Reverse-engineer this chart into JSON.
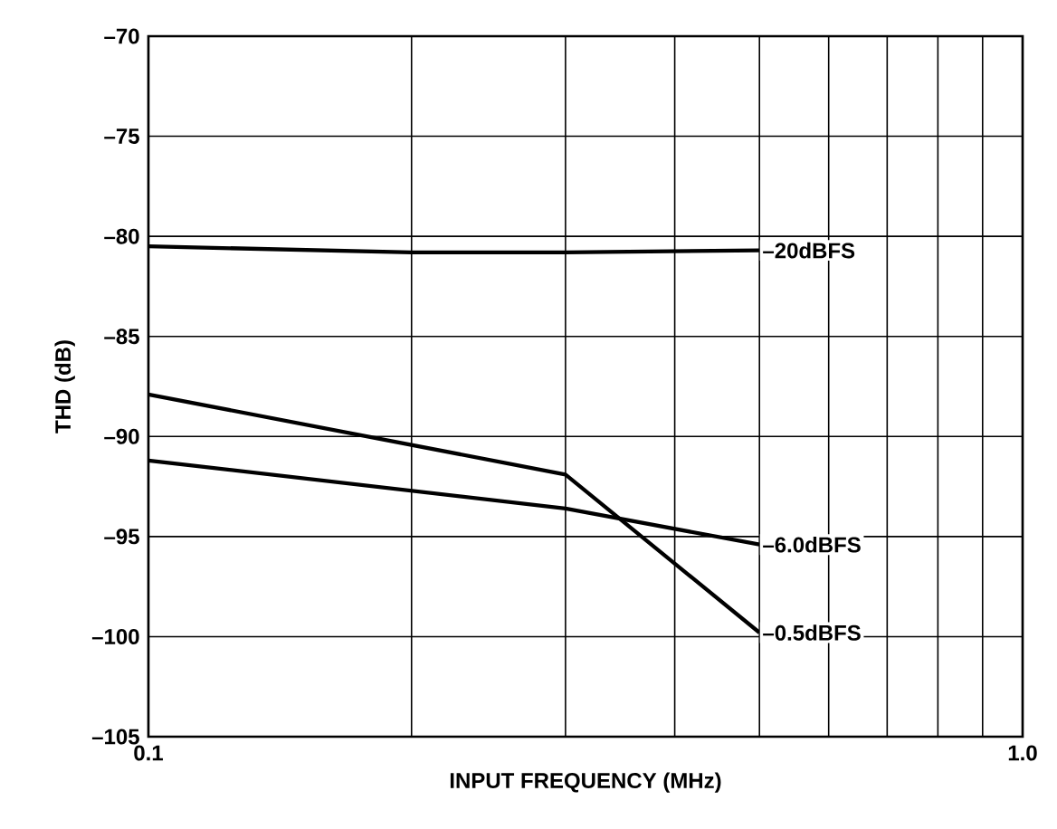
{
  "chart_data": {
    "type": "line",
    "xlabel": "INPUT FREQUENCY (MHz)",
    "ylabel": "THD (dB)",
    "log": "x",
    "grid": true,
    "marker": "none",
    "line_style": "solid",
    "xlim": [
      0.1,
      1.0
    ],
    "ylim": [
      -105,
      -70
    ],
    "xticks": [
      {
        "value": 0.1,
        "label": "0.1"
      },
      {
        "value": 0.2,
        "label": null
      },
      {
        "value": 0.3,
        "label": null
      },
      {
        "value": 0.4,
        "label": null
      },
      {
        "value": 0.5,
        "label": null
      },
      {
        "value": 0.6,
        "label": null
      },
      {
        "value": 0.7,
        "label": null
      },
      {
        "value": 0.8,
        "label": null
      },
      {
        "value": 0.9,
        "label": null
      },
      {
        "value": 1.0,
        "label": "1.0"
      }
    ],
    "yticks": [
      {
        "value": -105,
        "label": "–105"
      },
      {
        "value": -100,
        "label": "–100"
      },
      {
        "value": -95,
        "label": "–95"
      },
      {
        "value": -90,
        "label": "–90"
      },
      {
        "value": -85,
        "label": "–85"
      },
      {
        "value": -80,
        "label": "–80"
      },
      {
        "value": -75,
        "label": "–75"
      },
      {
        "value": -70,
        "label": "–70"
      }
    ],
    "series": [
      {
        "name": "–20dBFS",
        "color": "#000000",
        "x": [
          0.1,
          0.2,
          0.3,
          0.5
        ],
        "values": [
          -80.5,
          -80.8,
          -80.8,
          -80.7
        ]
      },
      {
        "name": "–6.0dBFS",
        "color": "#000000",
        "x": [
          0.1,
          0.3,
          0.5
        ],
        "values": [
          -91.2,
          -93.6,
          -95.4
        ]
      },
      {
        "name": "–0.5dBFS",
        "color": "#000000",
        "x": [
          0.1,
          0.3,
          0.5
        ],
        "values": [
          -87.9,
          -91.9,
          -99.8
        ]
      }
    ]
  }
}
